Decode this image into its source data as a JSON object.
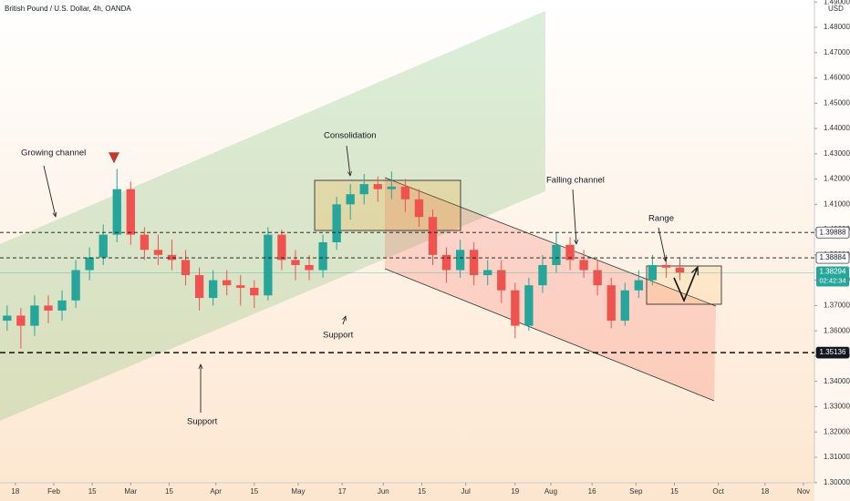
{
  "chart_data": {
    "type": "candlestick",
    "title": "British Pound / U.S. Dollar, 4h, OANDA",
    "currency": "USD",
    "x": [
      15,
      20,
      25,
      30,
      35,
      40,
      45,
      50,
      55,
      60,
      65,
      70,
      75,
      80,
      85,
      90,
      95,
      100,
      105,
      110,
      115,
      120,
      125,
      130,
      135,
      140,
      145,
      150,
      155,
      160,
      165,
      170,
      175,
      180,
      185,
      190,
      195,
      200,
      205,
      210,
      215,
      220,
      225,
      230,
      235,
      240,
      245,
      250,
      255,
      260
    ],
    "open": [
      1.364,
      1.366,
      1.362,
      1.37,
      1.368,
      1.372,
      1.384,
      1.389,
      1.398,
      1.416,
      1.398,
      1.392,
      1.39,
      1.388,
      1.382,
      1.373,
      1.38,
      1.378,
      1.377,
      1.374,
      1.398,
      1.388,
      1.386,
      1.384,
      1.395,
      1.41,
      1.414,
      1.418,
      1.416,
      1.417,
      1.412,
      1.405,
      1.39,
      1.384,
      1.392,
      1.382,
      1.384,
      1.376,
      1.362,
      1.378,
      1.386,
      1.394,
      1.388,
      1.384,
      1.378,
      1.364,
      1.376,
      1.38,
      1.386,
      1.385
    ],
    "high": [
      1.37,
      1.369,
      1.374,
      1.374,
      1.376,
      1.388,
      1.393,
      1.402,
      1.424,
      1.419,
      1.401,
      1.398,
      1.396,
      1.392,
      1.385,
      1.384,
      1.384,
      1.382,
      1.38,
      1.401,
      1.4,
      1.392,
      1.39,
      1.398,
      1.413,
      1.418,
      1.422,
      1.421,
      1.423,
      1.42,
      1.416,
      1.408,
      1.393,
      1.396,
      1.395,
      1.388,
      1.388,
      1.379,
      1.381,
      1.39,
      1.399,
      1.397,
      1.392,
      1.388,
      1.381,
      1.379,
      1.384,
      1.39,
      1.39,
      1.389
    ],
    "low": [
      1.36,
      1.353,
      1.358,
      1.363,
      1.364,
      1.369,
      1.38,
      1.386,
      1.395,
      1.394,
      1.388,
      1.386,
      1.384,
      1.378,
      1.368,
      1.37,
      1.374,
      1.37,
      1.369,
      1.372,
      1.384,
      1.38,
      1.38,
      1.381,
      1.392,
      1.404,
      1.41,
      1.411,
      1.412,
      1.407,
      1.401,
      1.386,
      1.379,
      1.381,
      1.378,
      1.378,
      1.371,
      1.357,
      1.36,
      1.375,
      1.383,
      1.384,
      1.381,
      1.374,
      1.361,
      1.362,
      1.373,
      1.378,
      1.381,
      1.38
    ],
    "close": [
      1.366,
      1.362,
      1.37,
      1.368,
      1.372,
      1.384,
      1.389,
      1.398,
      1.416,
      1.398,
      1.392,
      1.39,
      1.388,
      1.382,
      1.373,
      1.38,
      1.378,
      1.377,
      1.374,
      1.398,
      1.388,
      1.386,
      1.384,
      1.395,
      1.41,
      1.414,
      1.418,
      1.416,
      1.417,
      1.412,
      1.405,
      1.39,
      1.384,
      1.392,
      1.382,
      1.384,
      1.376,
      1.362,
      1.378,
      1.386,
      1.394,
      1.388,
      1.384,
      1.378,
      1.364,
      1.376,
      1.38,
      1.386,
      1.385,
      1.383
    ],
    "up_color": "#26a69a",
    "down_color": "#ef5350",
    "xlim": [
      12.4,
      309
    ],
    "xticks": [
      {
        "value": 18,
        "label": "18"
      },
      {
        "value": 32,
        "label": "Feb"
      },
      {
        "value": 46,
        "label": "15"
      },
      {
        "value": 60,
        "label": "Mar"
      },
      {
        "value": 74,
        "label": "15"
      },
      {
        "value": 91,
        "label": "Apr"
      },
      {
        "value": 105,
        "label": "15"
      },
      {
        "value": 121,
        "label": "May"
      },
      {
        "value": 137,
        "label": "17"
      },
      {
        "value": 152,
        "label": "Jun"
      },
      {
        "value": 166,
        "label": "15"
      },
      {
        "value": 182,
        "label": "Jul"
      },
      {
        "value": 200,
        "label": "19"
      },
      {
        "value": 213,
        "label": "Aug"
      },
      {
        "value": 228,
        "label": "16"
      },
      {
        "value": 244,
        "label": "Sep"
      },
      {
        "value": 258,
        "label": "15"
      },
      {
        "value": 274,
        "label": "Oct"
      },
      {
        "value": 291,
        "label": "18"
      },
      {
        "value": 305,
        "label": "Nov"
      }
    ],
    "ylim": [
      1.2999,
      1.4908
    ],
    "yticks": [
      {
        "value": 1.3,
        "label": "1.30000"
      },
      {
        "value": 1.31,
        "label": "1.31000"
      },
      {
        "value": 1.32,
        "label": "1.32000"
      },
      {
        "value": 1.33,
        "label": "1.33000"
      },
      {
        "value": 1.34,
        "label": "1.34000"
      },
      {
        "value": 1.35,
        "label": "1.35000"
      },
      {
        "value": 1.36,
        "label": "1.36000"
      },
      {
        "value": 1.37,
        "label": "1.37000"
      },
      {
        "value": 1.38,
        "label": "1.38000"
      },
      {
        "value": 1.39,
        "label": "1.39000"
      },
      {
        "value": 1.4,
        "label": "1.40000"
      },
      {
        "value": 1.41,
        "label": "1.41000"
      },
      {
        "value": 1.42,
        "label": "1.42000"
      },
      {
        "value": 1.43,
        "label": "1.43000"
      },
      {
        "value": 1.44,
        "label": "1.44000"
      },
      {
        "value": 1.45,
        "label": "1.45000"
      },
      {
        "value": 1.46,
        "label": "1.46000"
      },
      {
        "value": 1.47,
        "label": "1.47000"
      },
      {
        "value": 1.48,
        "label": "1.48000"
      },
      {
        "value": 1.49,
        "label": "1.49000"
      }
    ],
    "grid": false,
    "hlines": [
      {
        "value": 1.39888,
        "dash": "thin"
      },
      {
        "value": 1.38884,
        "dash": "thin"
      },
      {
        "value": 1.35136,
        "dash": "thick"
      }
    ],
    "last_price": 1.38294,
    "countdown": "02:42:34",
    "annotations": [
      "Growing channel",
      "Consolidation",
      "Falling channel",
      "Range",
      "Support",
      "Support"
    ]
  }
}
